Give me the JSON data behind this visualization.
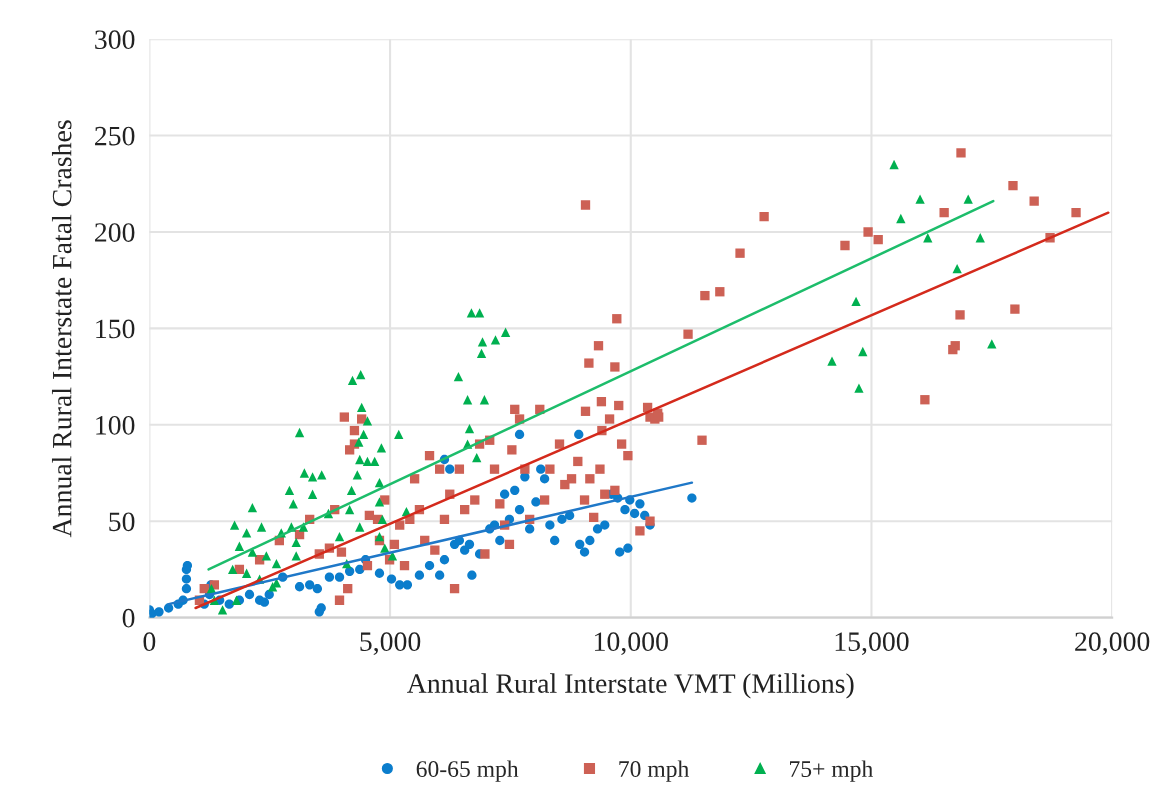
{
  "chart_data": {
    "type": "scatter",
    "xlabel": "Annual Rural Interstate VMT (Millions)",
    "ylabel": "Annual Rural Interstate Fatal Crashes",
    "xlim": [
      0,
      20000
    ],
    "ylim": [
      0,
      300
    ],
    "xticks": [
      0,
      {
        "value": 5000,
        "label": "5,000"
      },
      {
        "value": 10000,
        "label": "10,000"
      },
      {
        "value": 15000,
        "label": "15,000"
      },
      {
        "value": 20000,
        "label": "20,000"
      }
    ],
    "yticks": [
      0,
      50,
      100,
      150,
      200,
      250,
      300
    ],
    "grid": true,
    "legend": "bottom",
    "series": [
      {
        "name": "60-65 mph",
        "color": "#0b7dcc",
        "marker": "circle",
        "x": [
          0,
          50,
          200,
          400,
          600,
          700,
          770,
          770,
          770,
          790,
          1140,
          1250,
          1280,
          1460,
          1660,
          1870,
          2080,
          2290,
          2390,
          2490,
          2770,
          3120,
          3330,
          3490,
          3530,
          3570,
          3740,
          3950,
          4160,
          4370,
          4490,
          4780,
          5030,
          5200,
          5360,
          5610,
          5820,
          6030,
          6130,
          6130,
          6240,
          6340,
          6440,
          6550,
          6650,
          6700,
          6860,
          7070,
          7170,
          7280,
          7380,
          7480,
          7590,
          7690,
          7690,
          7800,
          7900,
          8030,
          8130,
          8210,
          8320,
          8420,
          8570,
          8730,
          8920,
          8940,
          9040,
          9150,
          9310,
          9460,
          9600,
          9730,
          9770,
          9880,
          9940,
          9980,
          10080,
          10190,
          10290,
          10400,
          11270
        ],
        "values": [
          4,
          2,
          3,
          5,
          7,
          9,
          15,
          20,
          25,
          27,
          7,
          12,
          17,
          9,
          7,
          9,
          12,
          9,
          8,
          12,
          21,
          16,
          17,
          15,
          3,
          5,
          21,
          21,
          24,
          25,
          30,
          23,
          20,
          17,
          17,
          22,
          27,
          22,
          30,
          82,
          77,
          38,
          40,
          35,
          38,
          22,
          33,
          46,
          48,
          40,
          64,
          51,
          66,
          56,
          95,
          73,
          46,
          60,
          77,
          72,
          48,
          40,
          51,
          53,
          95,
          38,
          34,
          40,
          46,
          48,
          64,
          62,
          34,
          56,
          36,
          61,
          54,
          59,
          53,
          48,
          62
        ]
      },
      {
        "name": "70 mph",
        "color": "#cd6155",
        "marker": "square",
        "x": [
          1040,
          1140,
          1350,
          1870,
          2290,
          2700,
          3120,
          3330,
          3530,
          3740,
          3850,
          3950,
          3990,
          4050,
          4120,
          4160,
          4260,
          4260,
          4410,
          4530,
          4570,
          4740,
          4780,
          4890,
          4990,
          5090,
          5200,
          5300,
          5410,
          5510,
          5610,
          5720,
          5820,
          5930,
          6030,
          6130,
          6240,
          6340,
          6440,
          6550,
          6760,
          6860,
          6970,
          7070,
          7170,
          7280,
          7380,
          7480,
          7530,
          7590,
          7690,
          7800,
          7900,
          8110,
          8210,
          8320,
          8520,
          8630,
          8770,
          8900,
          9040,
          9060,
          9060,
          9130,
          9150,
          9230,
          9330,
          9360,
          9390,
          9400,
          9460,
          9560,
          9670,
          9670,
          9710,
          9750,
          9810,
          9940,
          10190,
          10350,
          10400,
          10400,
          10500,
          10560,
          10580,
          11190,
          11480,
          11540,
          11850,
          12270,
          12770,
          14450,
          14930,
          15140,
          16110,
          16510,
          16690,
          16740,
          16840,
          16860,
          17940,
          17980,
          18380,
          18710,
          19250
        ],
        "values": [
          9,
          15,
          17,
          25,
          30,
          40,
          43,
          51,
          33,
          36,
          56,
          9,
          34,
          104,
          15,
          87,
          90,
          97,
          103,
          27,
          53,
          51,
          40,
          61,
          30,
          38,
          48,
          27,
          51,
          72,
          56,
          40,
          84,
          35,
          77,
          51,
          64,
          15,
          77,
          56,
          61,
          90,
          33,
          92,
          77,
          59,
          48,
          38,
          87,
          108,
          103,
          77,
          51,
          108,
          61,
          77,
          90,
          69,
          72,
          81,
          61,
          107,
          214,
          132,
          72,
          52,
          141,
          77,
          112,
          97,
          64,
          103,
          66,
          130,
          155,
          110,
          90,
          84,
          45,
          109,
          50,
          104,
          103,
          106,
          104,
          147,
          92,
          167,
          169,
          189,
          208,
          193,
          200,
          196,
          113,
          210,
          139,
          141,
          157,
          241,
          224,
          160,
          216,
          197,
          210
        ]
      },
      {
        "name": "75+ mph",
        "color": "#00b050",
        "marker": "triangle",
        "x": [
          1290,
          1350,
          1520,
          1730,
          1770,
          1810,
          1870,
          2020,
          2020,
          2140,
          2140,
          2290,
          2330,
          2430,
          2560,
          2640,
          2640,
          2740,
          2910,
          2950,
          2990,
          3050,
          3050,
          3120,
          3200,
          3220,
          3390,
          3390,
          3580,
          3720,
          3950,
          4100,
          4160,
          4200,
          4220,
          4320,
          4350,
          4370,
          4370,
          4390,
          4410,
          4450,
          4530,
          4530,
          4680,
          4780,
          4780,
          4780,
          4820,
          4840,
          4890,
          5050,
          5180,
          5340,
          6420,
          6610,
          6610,
          6650,
          6690,
          6800,
          6860,
          6900,
          6920,
          6960,
          7190,
          7400,
          14180,
          14680,
          14740,
          14820,
          15470,
          15610,
          16010,
          16170,
          16780,
          17010,
          17260,
          17500
        ],
        "values": [
          15,
          9,
          4,
          25,
          48,
          9,
          37,
          44,
          23,
          34,
          57,
          20,
          47,
          32,
          16,
          28,
          18,
          44,
          66,
          47,
          59,
          39,
          32,
          96,
          47,
          75,
          73,
          64,
          74,
          54,
          42,
          28,
          56,
          66,
          123,
          74,
          91,
          82,
          47,
          126,
          109,
          95,
          102,
          81,
          81,
          70,
          60,
          42,
          88,
          51,
          36,
          32,
          95,
          55,
          125,
          113,
          90,
          98,
          158,
          83,
          158,
          137,
          143,
          113,
          144,
          148,
          133,
          164,
          119,
          138,
          235,
          207,
          217,
          197,
          181,
          217,
          197,
          142
        ]
      },
      {
        "type": "line",
        "color": "#1f78c8",
        "x": [
          400,
          11270
        ],
        "values": [
          7,
          70
        ]
      },
      {
        "type": "line",
        "color": "#d42a1c",
        "x": [
          960,
          19920
        ],
        "values": [
          5,
          210
        ]
      },
      {
        "type": "line",
        "color": "#1dbd6b",
        "x": [
          1230,
          17530
        ],
        "values": [
          25,
          216
        ]
      }
    ]
  }
}
